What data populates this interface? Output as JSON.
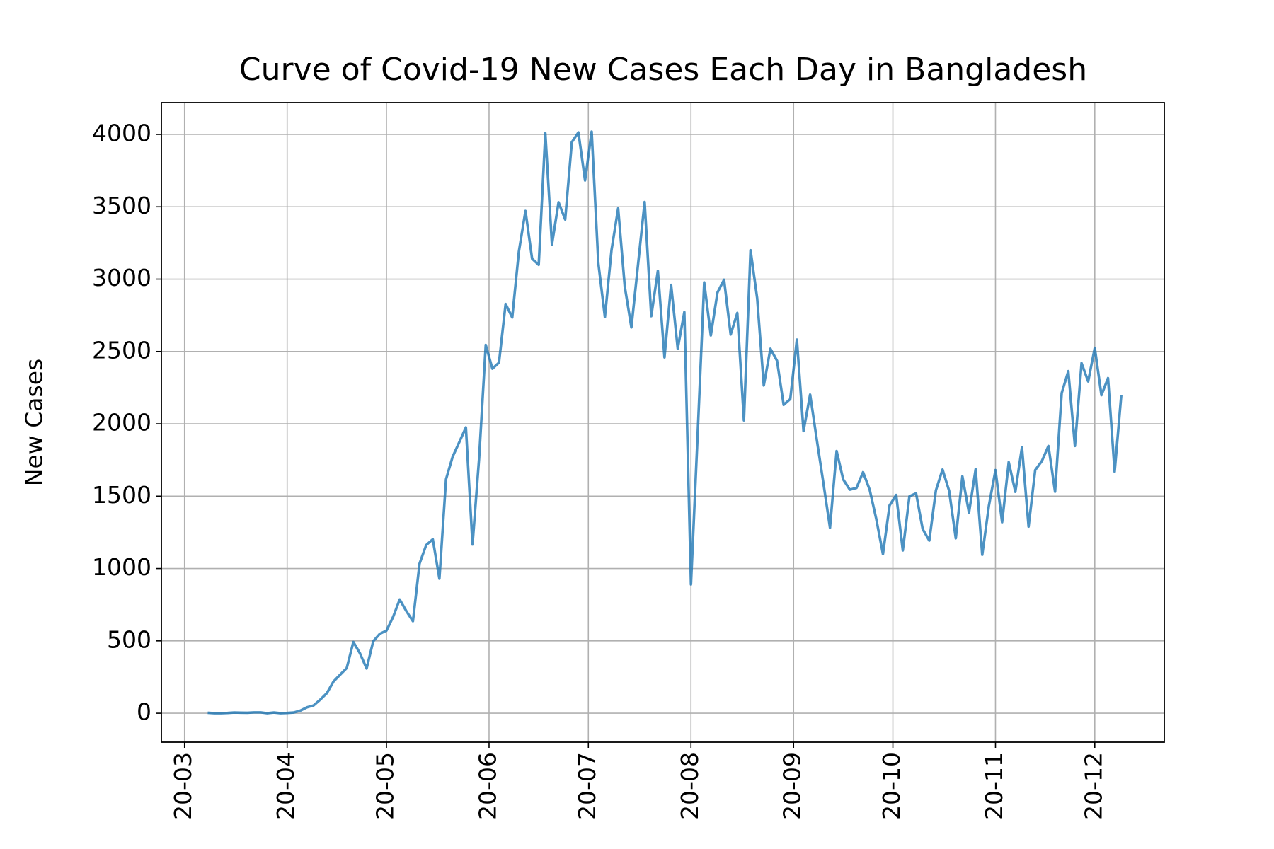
{
  "chart_data": {
    "type": "line",
    "title": "Curve of Covid-19 New Cases Each Day in Bangladesh",
    "y_label": "New Cases",
    "color": "#1f77b4",
    "grid": true,
    "xlim": [
      "2020-02-23",
      "2020-12-22"
    ],
    "ylim": [
      -200,
      4220
    ],
    "xticks": [
      {
        "value": "2020-03-01",
        "label": "20-03"
      },
      {
        "value": "2020-04-01",
        "label": "20-04"
      },
      {
        "value": "2020-05-01",
        "label": "20-05"
      },
      {
        "value": "2020-06-01",
        "label": "20-06"
      },
      {
        "value": "2020-07-01",
        "label": "20-07"
      },
      {
        "value": "2020-08-01",
        "label": "20-08"
      },
      {
        "value": "2020-09-01",
        "label": "20-09"
      },
      {
        "value": "2020-10-01",
        "label": "20-10"
      },
      {
        "value": "2020-11-01",
        "label": "20-11"
      },
      {
        "value": "2020-12-01",
        "label": "20-12"
      }
    ],
    "yticks": [
      0,
      500,
      1000,
      1500,
      2000,
      2500,
      3000,
      3500,
      4000
    ],
    "x": [
      "2020-03-08",
      "2020-03-10",
      "2020-03-12",
      "2020-03-14",
      "2020-03-16",
      "2020-03-18",
      "2020-03-20",
      "2020-03-22",
      "2020-03-24",
      "2020-03-26",
      "2020-03-28",
      "2020-03-30",
      "2020-04-01",
      "2020-04-03",
      "2020-04-05",
      "2020-04-07",
      "2020-04-09",
      "2020-04-11",
      "2020-04-13",
      "2020-04-15",
      "2020-04-17",
      "2020-04-19",
      "2020-04-21",
      "2020-04-23",
      "2020-04-25",
      "2020-04-27",
      "2020-04-29",
      "2020-05-01",
      "2020-05-03",
      "2020-05-05",
      "2020-05-07",
      "2020-05-09",
      "2020-05-11",
      "2020-05-13",
      "2020-05-15",
      "2020-05-17",
      "2020-05-19",
      "2020-05-21",
      "2020-05-23",
      "2020-05-25",
      "2020-05-27",
      "2020-05-29",
      "2020-05-31",
      "2020-06-02",
      "2020-06-04",
      "2020-06-06",
      "2020-06-08",
      "2020-06-10",
      "2020-06-12",
      "2020-06-14",
      "2020-06-16",
      "2020-06-18",
      "2020-06-20",
      "2020-06-22",
      "2020-06-24",
      "2020-06-26",
      "2020-06-28",
      "2020-06-30",
      "2020-07-02",
      "2020-07-04",
      "2020-07-06",
      "2020-07-08",
      "2020-07-10",
      "2020-07-12",
      "2020-07-14",
      "2020-07-16",
      "2020-07-18",
      "2020-07-20",
      "2020-07-22",
      "2020-07-24",
      "2020-07-26",
      "2020-07-28",
      "2020-07-30",
      "2020-08-01",
      "2020-08-03",
      "2020-08-05",
      "2020-08-07",
      "2020-08-09",
      "2020-08-11",
      "2020-08-13",
      "2020-08-15",
      "2020-08-17",
      "2020-08-19",
      "2020-08-21",
      "2020-08-23",
      "2020-08-25",
      "2020-08-27",
      "2020-08-29",
      "2020-08-31",
      "2020-09-02",
      "2020-09-04",
      "2020-09-06",
      "2020-09-08",
      "2020-09-10",
      "2020-09-12",
      "2020-09-14",
      "2020-09-16",
      "2020-09-18",
      "2020-09-20",
      "2020-09-22",
      "2020-09-24",
      "2020-09-26",
      "2020-09-28",
      "2020-09-30",
      "2020-10-02",
      "2020-10-04",
      "2020-10-06",
      "2020-10-08",
      "2020-10-10",
      "2020-10-12",
      "2020-10-14",
      "2020-10-16",
      "2020-10-18",
      "2020-10-20",
      "2020-10-22",
      "2020-10-24",
      "2020-10-26",
      "2020-10-28",
      "2020-10-30",
      "2020-11-01",
      "2020-11-03",
      "2020-11-05",
      "2020-11-07",
      "2020-11-09",
      "2020-11-11",
      "2020-11-13",
      "2020-11-15",
      "2020-11-17",
      "2020-11-19",
      "2020-11-21",
      "2020-11-23",
      "2020-11-25",
      "2020-11-27",
      "2020-11-29",
      "2020-12-01",
      "2020-12-03",
      "2020-12-05",
      "2020-12-07",
      "2020-12-09"
    ],
    "values": [
      3,
      0,
      0,
      2,
      5,
      4,
      3,
      6,
      6,
      0,
      5,
      0,
      2,
      5,
      18,
      41,
      54,
      94,
      139,
      219,
      266,
      312,
      492,
      414,
      309,
      497,
      549,
      571,
      665,
      786,
      706,
      636,
      1034,
      1162,
      1202,
      930,
      1617,
      1773,
      1873,
      1975,
      1166,
      1764,
      2545,
      2381,
      2423,
      2828,
      2735,
      3190,
      3471,
      3141,
      3099,
      4008,
      3240,
      3531,
      3412,
      3946,
      4014,
      3682,
      4019,
      3114,
      2738,
      3201,
      3489,
      2949,
      2666,
      3099,
      3533,
      2744,
      3057,
      2459,
      2960,
      2520,
      2772,
      890,
      1918,
      2977,
      2611,
      2907,
      2996,
      2617,
      2766,
      2024,
      3200,
      2868,
      2265,
      2519,
      2436,
      2131,
      2171,
      2582,
      1950,
      2202,
      1892,
      1592,
      1282,
      1812,
      1615,
      1545,
      1557,
      1666,
      1544,
      1340,
      1100,
      1436,
      1508,
      1125,
      1499,
      1520,
      1273,
      1193,
      1540,
      1684,
      1537,
      1209,
      1637,
      1386,
      1686,
      1095,
      1433,
      1680,
      1320,
      1735,
      1530,
      1838,
      1290,
      1680,
      1742,
      1847,
      1531,
      2212,
      2364,
      1847,
      2419,
      2293,
      2525,
      2198,
      2316,
      1669,
      2198
    ]
  }
}
